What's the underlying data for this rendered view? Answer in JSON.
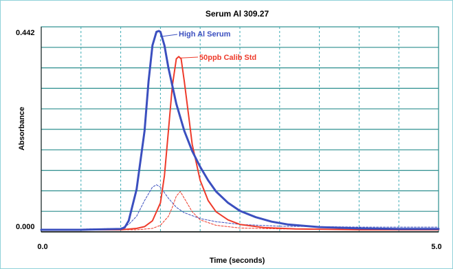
{
  "chart_data": {
    "type": "line",
    "title": "Serum  Al 309.27",
    "xlabel": "Time (seconds)",
    "ylabel": "Absorbance",
    "xlim": [
      0.0,
      5.0
    ],
    "ylim": [
      0.0,
      0.442
    ],
    "x_tick_labels": [
      "0.0",
      "5.0"
    ],
    "y_tick_labels": [
      "0.442",
      "0.000"
    ],
    "grid": true,
    "colors": {
      "blue": "#3b4fbf",
      "red": "#ee3a2a",
      "grid_h": "#2a8e8e",
      "grid_v": "#3aaab3"
    },
    "series": [
      {
        "name": "High Al Serum",
        "color": "#3b4fbf",
        "style": "solid",
        "x": [
          0.0,
          0.5,
          1.0,
          1.05,
          1.1,
          1.2,
          1.3,
          1.35,
          1.4,
          1.45,
          1.48,
          1.5,
          1.55,
          1.6,
          1.7,
          1.8,
          1.9,
          2.0,
          2.1,
          2.2,
          2.35,
          2.5,
          2.7,
          2.9,
          3.1,
          3.5,
          4.0,
          4.5,
          5.0
        ],
        "values": [
          0.0,
          0.0,
          0.002,
          0.005,
          0.02,
          0.09,
          0.22,
          0.33,
          0.41,
          0.44,
          0.442,
          0.44,
          0.41,
          0.36,
          0.28,
          0.22,
          0.175,
          0.14,
          0.11,
          0.085,
          0.06,
          0.042,
          0.028,
          0.018,
          0.012,
          0.006,
          0.003,
          0.002,
          0.002
        ]
      },
      {
        "name": "50ppb Calib Std",
        "color": "#ee3a2a",
        "style": "solid",
        "x": [
          0.0,
          1.0,
          1.2,
          1.3,
          1.4,
          1.5,
          1.55,
          1.6,
          1.65,
          1.7,
          1.73,
          1.76,
          1.8,
          1.85,
          1.9,
          2.0,
          2.1,
          2.2,
          2.35,
          2.5,
          2.8,
          3.2,
          4.0,
          5.0
        ],
        "values": [
          0.0,
          0.0,
          0.003,
          0.007,
          0.02,
          0.06,
          0.12,
          0.22,
          0.32,
          0.38,
          0.385,
          0.38,
          0.33,
          0.26,
          0.19,
          0.11,
          0.065,
          0.04,
          0.022,
          0.012,
          0.005,
          0.002,
          0.0,
          0.0
        ]
      },
      {
        "name": "",
        "color": "#3b4fbf",
        "style": "dashed",
        "x": [
          0.0,
          1.0,
          1.1,
          1.2,
          1.3,
          1.4,
          1.45,
          1.5,
          1.6,
          1.7,
          1.8,
          2.0,
          2.2,
          2.5,
          3.0,
          3.5,
          4.0,
          5.0
        ],
        "values": [
          0.0,
          0.003,
          0.012,
          0.03,
          0.065,
          0.095,
          0.1,
          0.095,
          0.07,
          0.05,
          0.038,
          0.025,
          0.018,
          0.012,
          0.008,
          0.007,
          0.006,
          0.006
        ]
      },
      {
        "name": "",
        "color": "#ee3a2a",
        "style": "dashed",
        "x": [
          0.0,
          1.2,
          1.4,
          1.5,
          1.6,
          1.65,
          1.7,
          1.75,
          1.8,
          1.9,
          2.0,
          2.2,
          2.5,
          3.0,
          4.0,
          5.0
        ],
        "values": [
          0.0,
          0.0,
          0.003,
          0.01,
          0.03,
          0.05,
          0.075,
          0.085,
          0.07,
          0.04,
          0.022,
          0.01,
          0.004,
          0.002,
          0.001,
          0.001
        ]
      }
    ]
  }
}
